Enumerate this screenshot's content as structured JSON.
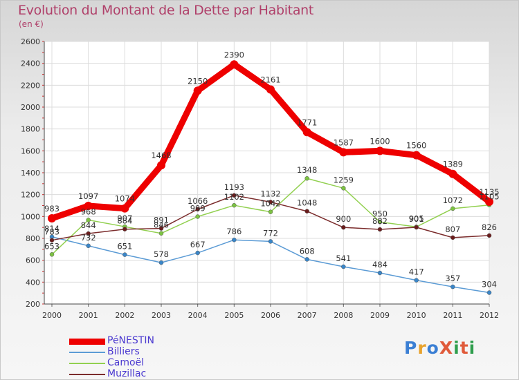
{
  "header": {
    "title": "Evolution du Montant de la Dette par Habitant",
    "subtitle": "(en €)"
  },
  "logo": {
    "text": "ProXiti",
    "letters": [
      {
        "ch": "P",
        "color": "#3b7fd4"
      },
      {
        "ch": "r",
        "color": "#e8a22c"
      },
      {
        "ch": "o",
        "color": "#3b7fd4"
      },
      {
        "ch": "X",
        "color": "#e05a3a"
      },
      {
        "ch": "i",
        "color": "#2f9e4d"
      },
      {
        "ch": "t",
        "color": "#e05a3a"
      },
      {
        "ch": "i",
        "color": "#2f9e4d"
      }
    ]
  },
  "chart_data": {
    "type": "line",
    "title": "Evolution du Montant de la Dette par Habitant",
    "subtitle": "(en €)",
    "xlabel": "",
    "ylabel": "",
    "categories": [
      "2000",
      "2001",
      "2002",
      "2003",
      "2004",
      "2005",
      "2006",
      "2007",
      "2008",
      "2009",
      "2010",
      "2011",
      "2012"
    ],
    "ylim": [
      200,
      2600
    ],
    "yticks": [
      200,
      400,
      600,
      800,
      1000,
      1200,
      1400,
      1600,
      1800,
      2000,
      2200,
      2400,
      2600
    ],
    "grid": true,
    "legend_position": "bottom-left",
    "series": [
      {
        "name": "PéNESTIN",
        "color": "#ee0000",
        "values": [
          983,
          1097,
          1074,
          1468,
          2150,
          2390,
          2161,
          1771,
          1587,
          1600,
          1560,
          1389,
          1135
        ]
      },
      {
        "name": "Billiers",
        "color": "#5b9bd5",
        "values": [
          814,
          732,
          651,
          578,
          667,
          786,
          772,
          608,
          541,
          484,
          417,
          357,
          304
        ]
      },
      {
        "name": "Camoël",
        "color": "#92d050",
        "values": [
          653,
          968,
          907,
          846,
          999,
          1102,
          1042,
          1348,
          1259,
          950,
          905,
          1072,
          1105
        ]
      },
      {
        "name": "Muzillac",
        "color": "#7b2c2c",
        "values": [
          783,
          844,
          884,
          891,
          1066,
          1193,
          1132,
          1048,
          900,
          882,
          901,
          807,
          826
        ]
      }
    ]
  }
}
